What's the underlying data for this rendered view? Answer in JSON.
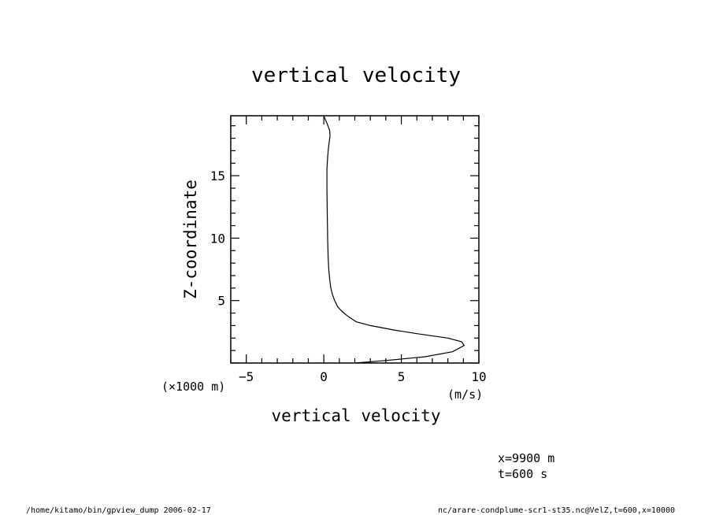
{
  "chart_data": {
    "type": "line",
    "title": "vertical velocity",
    "xlabel": "vertical velocity",
    "ylabel": "Z-coordinate",
    "x_unit": "(m/s)",
    "y_unit": "(×1000 m)",
    "xlim": [
      -6,
      10
    ],
    "ylim": [
      0,
      19.8
    ],
    "x_ticks": [
      -5,
      0,
      5,
      10
    ],
    "y_ticks": [
      5,
      10,
      15
    ],
    "x_tick_labels": [
      "−5",
      "0",
      "5",
      "10"
    ],
    "y_tick_labels": [
      "5",
      "10",
      "15"
    ],
    "grid": false,
    "series": [
      {
        "x": [
          2.0,
          4.0,
          6.5,
          8.3,
          9.05,
          8.9,
          8.0,
          6.0,
          4.5,
          3.0,
          2.1,
          1.6,
          1.2,
          0.9,
          0.7,
          0.55,
          0.45,
          0.38,
          0.32,
          0.28,
          0.25,
          0.22,
          0.2,
          0.2,
          0.25,
          0.3,
          0.35,
          0.4,
          0.38,
          0.3,
          0.2,
          0.1,
          0.0
        ],
        "y": [
          0.0,
          0.2,
          0.5,
          0.9,
          1.4,
          1.7,
          2.0,
          2.35,
          2.65,
          3.0,
          3.3,
          3.7,
          4.1,
          4.5,
          5.0,
          5.5,
          6.0,
          6.7,
          7.5,
          8.5,
          10.0,
          12.0,
          14.0,
          15.5,
          16.5,
          17.2,
          17.7,
          18.2,
          18.6,
          18.9,
          19.2,
          19.5,
          19.8
        ]
      }
    ]
  },
  "annotations": {
    "line1": "x=9900  m",
    "line2": "t=600  s"
  },
  "footer": {
    "left": "/home/kitamo/bin/gpview_dump   2006-02-17",
    "right": "nc/arare-condplume-scr1-st35.nc@VelZ,t=600,x=10000"
  }
}
